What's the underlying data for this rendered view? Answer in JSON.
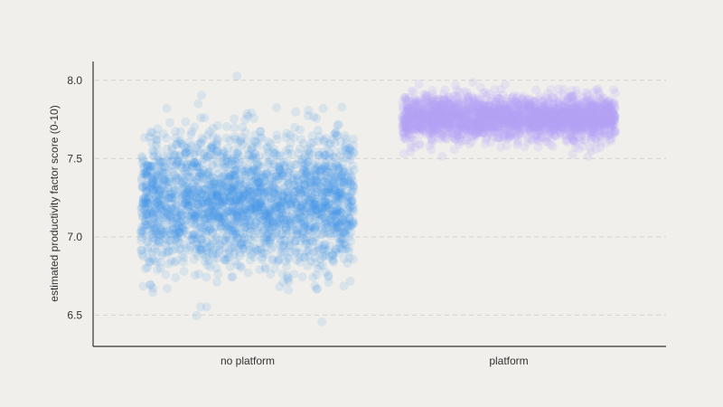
{
  "chart_data": {
    "type": "scatter",
    "ylabel": "estimated productivity factor score (0-10)",
    "xlabel": "",
    "title": "",
    "categories": [
      "no platform",
      "platform"
    ],
    "ylim": [
      6.3,
      8.12
    ],
    "yticks": [
      6.5,
      7.0,
      7.5,
      8.0
    ],
    "ytick_labels": [
      "6.5",
      "7.0",
      "7.5",
      "8.0"
    ],
    "grid": "horizontal dashed",
    "jitter": "uniform within category band",
    "series": [
      {
        "category": "no platform",
        "color": "#3b93e8",
        "point_count": 2400,
        "mean": 7.22,
        "sd": 0.22,
        "min": 6.38,
        "max": 8.05
      },
      {
        "category": "platform",
        "color": "#b3a3fb",
        "point_count": 2400,
        "mean": 7.76,
        "sd": 0.07,
        "min": 7.5,
        "max": 8.05
      }
    ]
  }
}
